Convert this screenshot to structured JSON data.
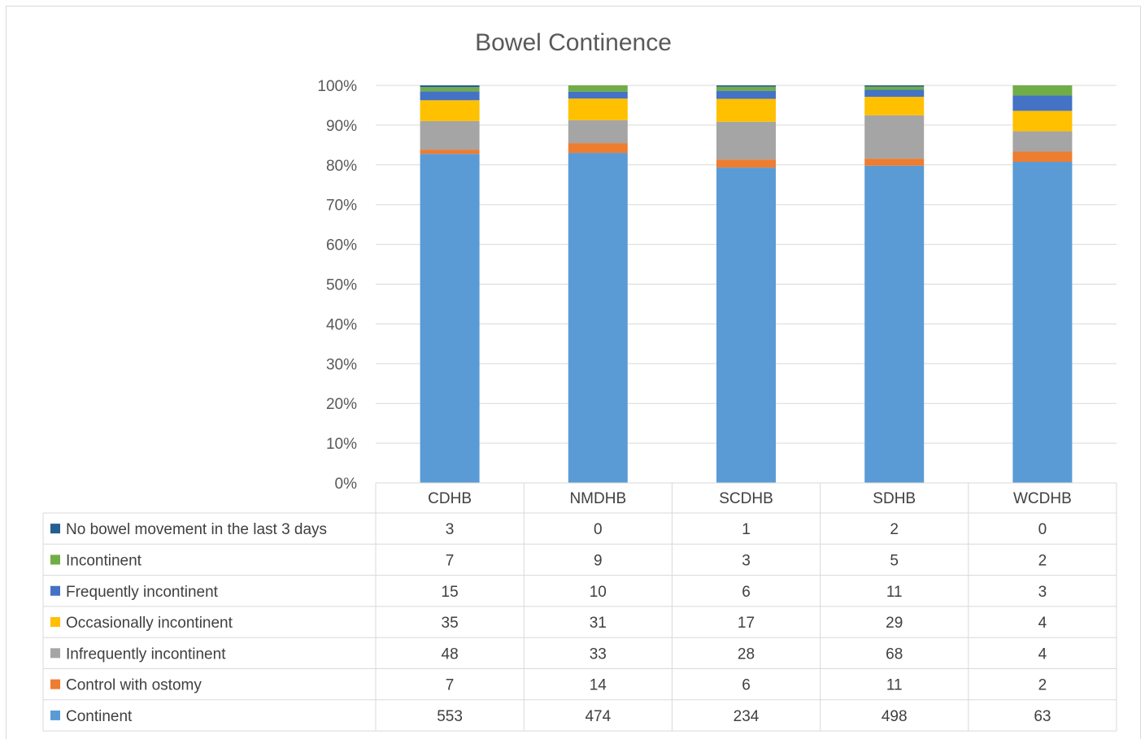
{
  "chart_data": {
    "type": "bar",
    "stacked": true,
    "normalized": true,
    "title": "Bowel Continence",
    "categories": [
      "CDHB",
      "NMDHB",
      "SCDHB",
      "SDHB",
      "WCDHB"
    ],
    "y_ticks": [
      "0%",
      "10%",
      "20%",
      "30%",
      "40%",
      "50%",
      "60%",
      "70%",
      "80%",
      "90%",
      "100%"
    ],
    "ylim": [
      0,
      100
    ],
    "grid": true,
    "legend_placement": "data-table",
    "series": [
      {
        "name": "Continent",
        "color": "#5b9bd5",
        "values": [
          553,
          474,
          234,
          498,
          63
        ]
      },
      {
        "name": "Control with ostomy",
        "color": "#ed7d31",
        "values": [
          7,
          14,
          6,
          11,
          2
        ]
      },
      {
        "name": "Infrequently incontinent",
        "color": "#a5a5a5",
        "values": [
          48,
          33,
          28,
          68,
          4
        ]
      },
      {
        "name": "Occasionally incontinent",
        "color": "#ffc000",
        "values": [
          35,
          31,
          17,
          29,
          4
        ]
      },
      {
        "name": "Frequently incontinent",
        "color": "#4472c4",
        "values": [
          15,
          10,
          6,
          11,
          3
        ]
      },
      {
        "name": "Incontinent",
        "color": "#70ad47",
        "values": [
          7,
          9,
          3,
          5,
          2
        ]
      },
      {
        "name": "No bowel movement in the last 3 days",
        "color": "#255e91",
        "values": [
          3,
          0,
          1,
          2,
          0
        ]
      }
    ]
  }
}
